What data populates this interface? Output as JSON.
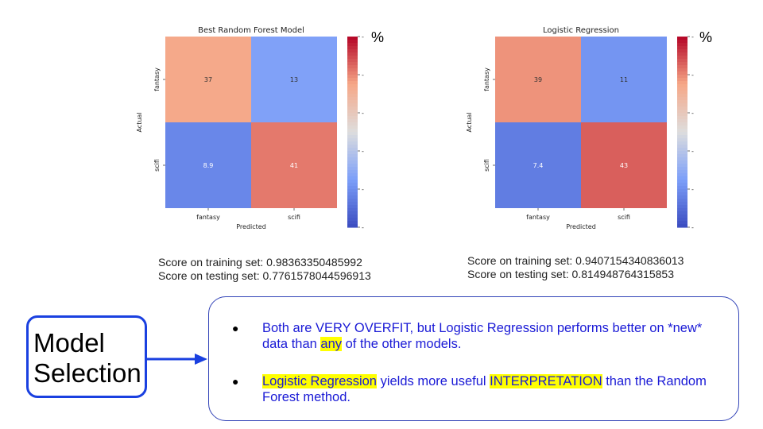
{
  "chart_data": [
    {
      "type": "heatmap",
      "title": "Best Random Forest Model",
      "xlabel": "Predicted",
      "ylabel": "Actual",
      "x_categories": [
        "fantasy",
        "scifi"
      ],
      "y_categories": [
        "fantasy",
        "scifi"
      ],
      "values": [
        [
          37,
          13
        ],
        [
          8.9,
          41
        ]
      ],
      "colorbar": {
        "min": 0,
        "max": 50,
        "ticks": [
          0,
          10,
          20,
          30,
          40,
          50
        ],
        "unit_label": "%",
        "colormap": "coolwarm"
      }
    },
    {
      "type": "heatmap",
      "title": "Logistic Regression",
      "xlabel": "Predicted",
      "ylabel": "Actual",
      "x_categories": [
        "fantasy",
        "scifi"
      ],
      "y_categories": [
        "fantasy",
        "scifi"
      ],
      "values": [
        [
          39,
          11
        ],
        [
          7.4,
          43
        ]
      ],
      "colorbar": {
        "min": 0,
        "max": 50,
        "ticks": [
          0,
          10,
          20,
          30,
          40,
          50
        ],
        "unit_label": "%",
        "colormap": "coolwarm"
      }
    }
  ],
  "scores": {
    "rf_train": "Score on training set: 0.98363350485992",
    "rf_test": "Score on testing set: 0.7761578044596913",
    "lr_train": "Score on training set: 0.9407154340836013",
    "lr_test": "Score on testing set: 0.814948764315853"
  },
  "model_selection_label": [
    "Model",
    "Selection"
  ],
  "notes": {
    "bullet1": {
      "before": "Both are VERY OVERFIT, but Logistic Regression performs better on *new* data than ",
      "highlight": "any",
      "after": " of the other models."
    },
    "bullet2": {
      "highlight1": "Logistic Regression",
      "middle": " yields more useful ",
      "highlight2": "INTERPRETATION",
      "after": " than the Random Forest method."
    }
  },
  "colors": {
    "box_border": "#1a40e0",
    "note_text": "#1a1ad6",
    "highlight": "#ffff00",
    "arrow": "#1a40e0"
  }
}
